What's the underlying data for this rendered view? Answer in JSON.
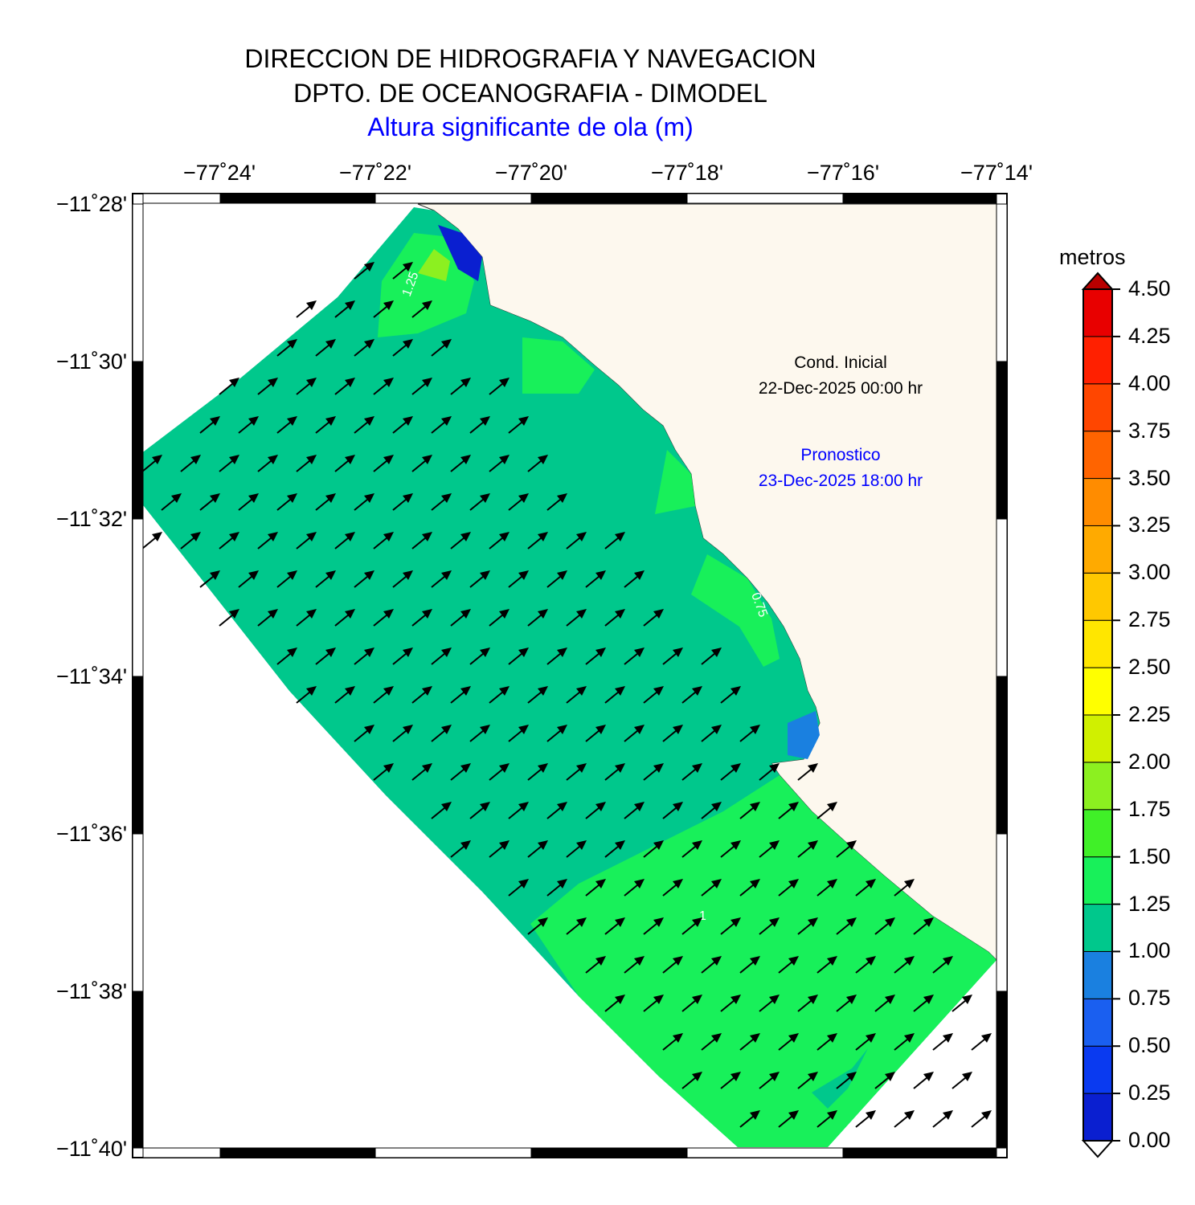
{
  "header": {
    "line1": "DIRECCION DE HIDROGRAFIA Y NAVEGACION",
    "line2": "DPTO. DE OCEANOGRAFIA - DIMODEL",
    "line3": "Altura significante de ola (m)",
    "line3_color": "#0000ff"
  },
  "axes": {
    "lon_labels": [
      "−77˚24'",
      "−77˚22'",
      "−77˚20'",
      "−77˚18'",
      "−77˚16'",
      "−77˚14'"
    ],
    "lat_labels": [
      "−11˚28'",
      "−11˚30'",
      "−11˚32'",
      "−11˚34'",
      "−11˚36'",
      "−11˚38'",
      "−11˚40'"
    ]
  },
  "annotations": {
    "init_label": "Cond. Inicial",
    "init_date": "22-Dec-2025 00:00 hr",
    "forecast_label": "Pronostico",
    "forecast_date": "23-Dec-2025 18:00 hr",
    "forecast_color": "#0000ff"
  },
  "contour_labels": [
    "1.25",
    "1",
    "0.75"
  ],
  "colorbar": {
    "title": "metros",
    "ticks": [
      "4.50",
      "4.25",
      "4.00",
      "3.75",
      "3.50",
      "3.25",
      "3.00",
      "2.75",
      "2.50",
      "2.25",
      "2.00",
      "1.75",
      "1.50",
      "1.25",
      "1.00",
      "0.75",
      "0.50",
      "0.25",
      "0.00"
    ],
    "colors": [
      "#0a1fd0",
      "#0a3af0",
      "#1a5ff0",
      "#1a80e0",
      "#00c88c",
      "#18f05a",
      "#40f028",
      "#8cf020",
      "#d0f000",
      "#ffff00",
      "#ffe600",
      "#ffc800",
      "#ffaa00",
      "#ff8c00",
      "#ff6400",
      "#ff4600",
      "#ff2000",
      "#e80000",
      "#b80000"
    ]
  },
  "colors": {
    "land": "#fdf8ee",
    "field_main": "#00c88c",
    "field_high": "#18f05a",
    "field_low": "#1a80e0",
    "field_peak": "#8cf020"
  }
}
